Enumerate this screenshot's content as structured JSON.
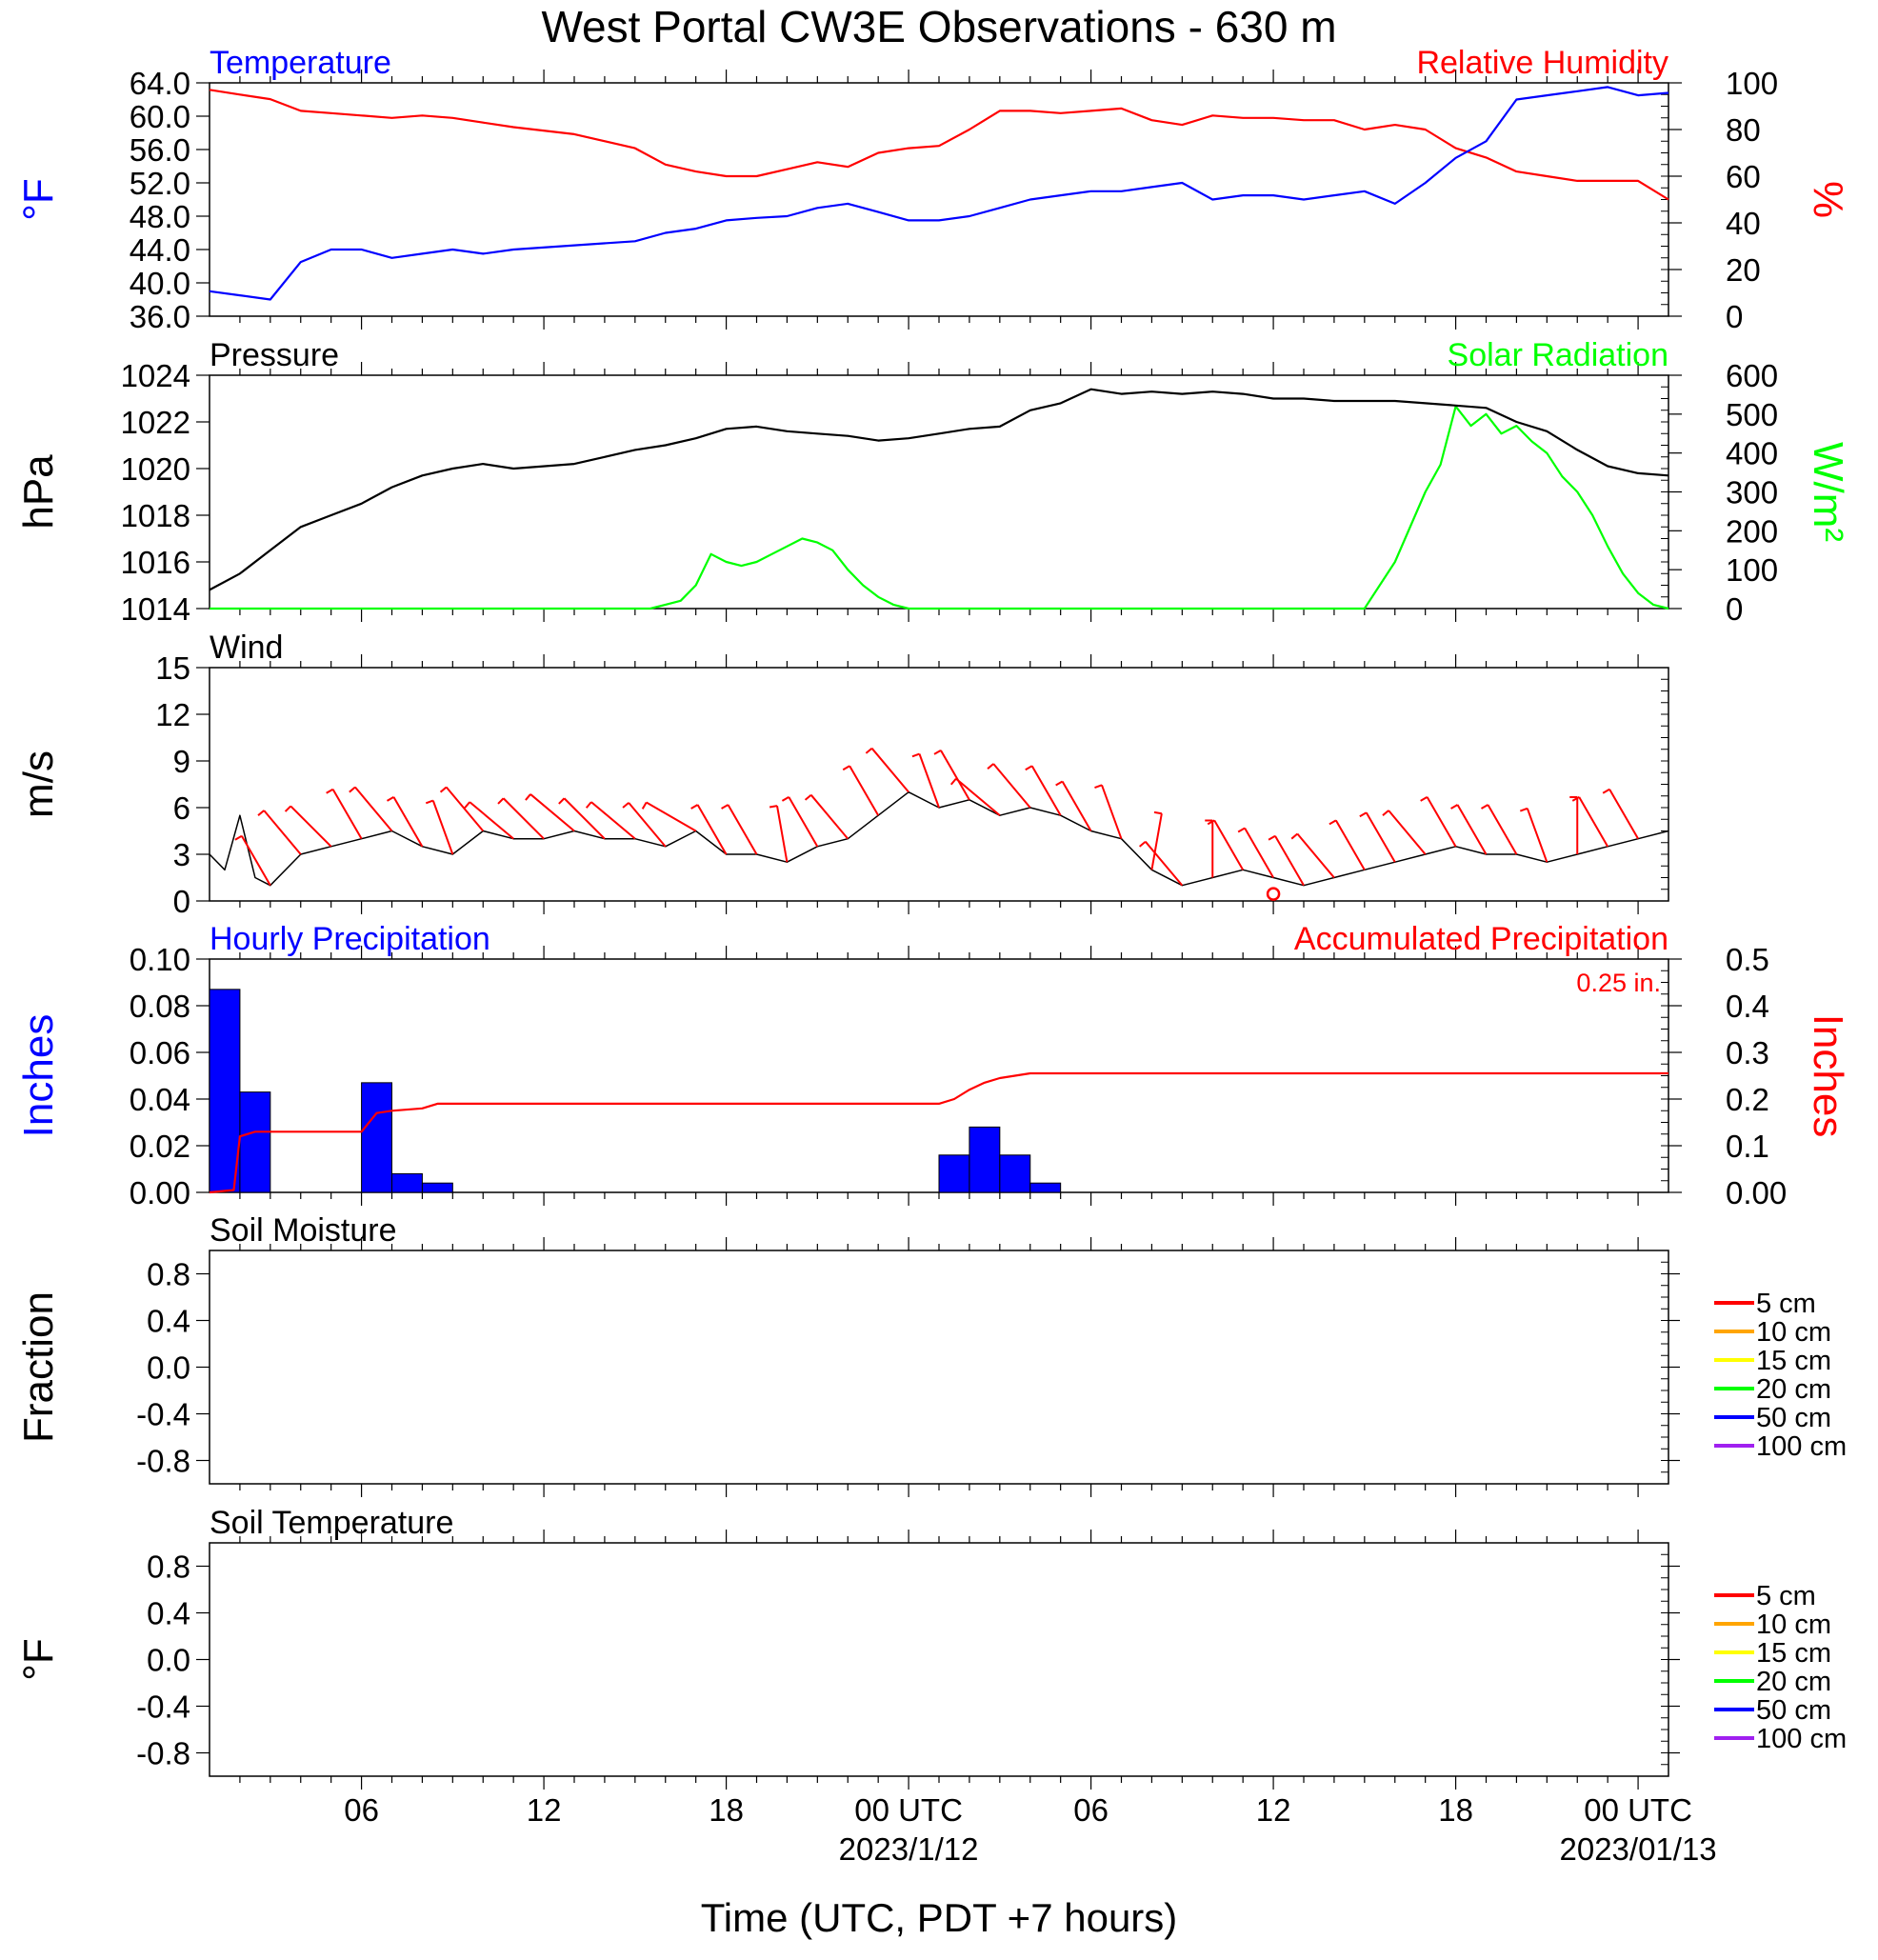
{
  "title": "West Portal CW3E Observations - 630 m",
  "x_axis": {
    "label": "Time (UTC, PDT +7 hours)",
    "range_hours": [
      0,
      48
    ],
    "ticks": [
      {
        "hour": 5,
        "label": "06",
        "sublabel": ""
      },
      {
        "hour": 11,
        "label": "12",
        "sublabel": ""
      },
      {
        "hour": 17,
        "label": "18",
        "sublabel": ""
      },
      {
        "hour": 23,
        "label": "00 UTC",
        "sublabel": "2023/1/12"
      },
      {
        "hour": 29,
        "label": "06",
        "sublabel": ""
      },
      {
        "hour": 35,
        "label": "12",
        "sublabel": ""
      },
      {
        "hour": 41,
        "label": "18",
        "sublabel": ""
      },
      {
        "hour": 47,
        "label": "00 UTC",
        "sublabel": "2023/01/13"
      }
    ]
  },
  "colors": {
    "temperature": "#0000ff",
    "humidity": "#ff0000",
    "pressure": "#000000",
    "solar": "#00ff00",
    "wind": "#000000",
    "barbs": "#ff0000",
    "hourly_precip": "#0000ff",
    "accum_precip": "#ff0000"
  },
  "chart_data": [
    {
      "type": "line",
      "title": "Temperature / Relative Humidity",
      "left_title": "Temperature",
      "right_title": "Relative Humidity",
      "ylabel": "°F",
      "y2label": "%",
      "ylim": [
        36,
        64
      ],
      "y2lim": [
        0,
        100
      ],
      "yticks": [
        "36.0",
        "40.0",
        "44.0",
        "48.0",
        "52.0",
        "56.0",
        "60.0",
        "64.0"
      ],
      "y2ticks": [
        "0",
        "20",
        "40",
        "60",
        "80",
        "100"
      ],
      "series": [
        {
          "name": "Temperature",
          "axis": "left",
          "x": [
            0,
            1,
            2,
            3,
            4,
            5,
            6,
            7,
            8,
            9,
            10,
            12,
            14,
            15,
            16,
            17,
            18,
            19,
            20,
            21,
            22,
            23,
            24,
            25,
            26,
            27,
            28,
            29,
            30,
            31,
            32,
            33,
            34,
            35,
            36,
            37,
            38,
            39,
            40,
            41,
            42,
            43,
            44,
            45,
            46,
            47,
            48
          ],
          "values": [
            39.0,
            38.5,
            38.0,
            42.5,
            44.0,
            44.0,
            43.0,
            43.5,
            44.0,
            43.5,
            44.0,
            44.5,
            45.0,
            46.0,
            46.5,
            47.5,
            47.8,
            48.0,
            49.0,
            49.5,
            48.5,
            47.5,
            47.5,
            48.0,
            49.0,
            50.0,
            50.5,
            51.0,
            51.0,
            51.5,
            52.0,
            50.0,
            50.5,
            50.5,
            50.0,
            50.5,
            51.0,
            49.5,
            52.0,
            55.0,
            57.0,
            62.0,
            62.5,
            63.0,
            63.5,
            62.5,
            62.8
          ]
        },
        {
          "name": "Relative Humidity",
          "axis": "right",
          "x": [
            0,
            1,
            2,
            3,
            4,
            5,
            6,
            7,
            8,
            9,
            10,
            12,
            14,
            15,
            16,
            17,
            18,
            19,
            20,
            21,
            22,
            23,
            24,
            25,
            26,
            27,
            28,
            29,
            30,
            31,
            32,
            33,
            34,
            35,
            36,
            37,
            38,
            39,
            40,
            41,
            42,
            43,
            44,
            45,
            46,
            47,
            48
          ],
          "values": [
            97,
            95,
            93,
            88,
            87,
            86,
            85,
            86,
            85,
            83,
            81,
            78,
            72,
            65,
            62,
            60,
            60,
            63,
            66,
            64,
            70,
            72,
            73,
            80,
            88,
            88,
            87,
            88,
            89,
            84,
            82,
            86,
            85,
            85,
            84,
            84,
            80,
            82,
            80,
            72,
            68,
            62,
            60,
            58,
            58,
            58,
            50
          ]
        }
      ]
    },
    {
      "type": "line",
      "title": "Pressure / Solar Radiation",
      "left_title": "Pressure",
      "right_title": "Solar Radiation",
      "ylabel": "hPa",
      "y2label": "W/m²",
      "ylim": [
        1014,
        1024
      ],
      "y2lim": [
        0,
        600
      ],
      "yticks": [
        "1014",
        "1016",
        "1018",
        "1020",
        "1022",
        "1024"
      ],
      "y2ticks": [
        "0",
        "100",
        "200",
        "300",
        "400",
        "500",
        "600"
      ],
      "series": [
        {
          "name": "Pressure",
          "axis": "left",
          "x": [
            0,
            1,
            2,
            3,
            4,
            5,
            6,
            7,
            8,
            9,
            10,
            12,
            13,
            14,
            15,
            16,
            17,
            18,
            19,
            20,
            21,
            22,
            23,
            24,
            25,
            26,
            27,
            28,
            29,
            30,
            31,
            32,
            33,
            34,
            35,
            36,
            37,
            38,
            39,
            40,
            41,
            42,
            43,
            44,
            45,
            46,
            47,
            48
          ],
          "values": [
            1014.8,
            1015.5,
            1016.5,
            1017.5,
            1018.0,
            1018.5,
            1019.2,
            1019.7,
            1020.0,
            1020.2,
            1020.0,
            1020.2,
            1020.5,
            1020.8,
            1021.0,
            1021.3,
            1021.7,
            1021.8,
            1021.6,
            1021.5,
            1021.4,
            1021.2,
            1021.3,
            1021.5,
            1021.7,
            1021.8,
            1022.5,
            1022.8,
            1023.4,
            1023.2,
            1023.3,
            1023.2,
            1023.3,
            1023.2,
            1023.0,
            1023.0,
            1022.9,
            1022.9,
            1022.9,
            1022.8,
            1022.7,
            1022.6,
            1022.0,
            1021.6,
            1020.8,
            1020.1,
            1019.8,
            1019.7
          ]
        },
        {
          "name": "Solar Radiation",
          "axis": "right",
          "x": [
            0,
            14,
            14.5,
            15,
            15.5,
            16,
            16.5,
            17,
            17.5,
            18,
            18.5,
            19,
            19.5,
            20,
            20.5,
            21,
            21.5,
            22,
            22.5,
            23,
            23.5,
            24,
            38,
            39,
            40,
            40.5,
            41,
            41.5,
            42,
            42.5,
            43,
            43.5,
            44,
            44.5,
            45,
            45.5,
            46,
            46.5,
            47,
            47.5,
            48
          ],
          "values": [
            0,
            0,
            0,
            10,
            20,
            60,
            140,
            120,
            110,
            120,
            140,
            160,
            180,
            170,
            150,
            100,
            60,
            30,
            10,
            0,
            0,
            0,
            0,
            120,
            300,
            370,
            520,
            470,
            500,
            450,
            470,
            430,
            400,
            340,
            300,
            240,
            160,
            90,
            40,
            10,
            0
          ]
        }
      ]
    },
    {
      "type": "line",
      "title": "Wind",
      "left_title": "Wind",
      "ylabel": "m/s",
      "ylim": [
        0,
        15
      ],
      "yticks": [
        "0",
        "3",
        "6",
        "9",
        "12",
        "15"
      ],
      "series": [
        {
          "name": "Wind",
          "x": [
            0,
            0.5,
            1,
            1.5,
            2,
            3,
            4,
            5,
            6,
            7,
            8,
            9,
            10,
            11,
            12,
            13,
            14,
            15,
            16,
            17,
            18,
            19,
            20,
            21,
            22,
            23,
            24,
            25,
            26,
            27,
            28,
            29,
            30,
            31,
            32,
            33,
            34,
            35,
            36,
            37,
            38,
            39,
            40,
            41,
            42,
            43,
            44,
            45,
            46,
            47,
            48
          ],
          "values": [
            3.0,
            2.0,
            5.5,
            1.5,
            1.0,
            3.0,
            3.5,
            4.0,
            4.5,
            3.5,
            3.0,
            4.5,
            4.0,
            4.0,
            4.5,
            4.0,
            4.0,
            3.5,
            4.5,
            3.0,
            3.0,
            2.5,
            3.5,
            4.0,
            5.5,
            7.0,
            6.0,
            6.5,
            5.5,
            6.0,
            5.5,
            4.5,
            4.0,
            2.0,
            1.0,
            1.5,
            2.0,
            1.5,
            1.0,
            1.5,
            2.0,
            2.5,
            3.0,
            3.5,
            3.0,
            3.0,
            2.5,
            3.0,
            3.5,
            4.0,
            4.5
          ]
        },
        {
          "name": "Wind barbs",
          "x": [
            2,
            3,
            4,
            5,
            6,
            7,
            8,
            9,
            10,
            11,
            12,
            13,
            14,
            15,
            16,
            17,
            18,
            19,
            20,
            21,
            22,
            23,
            24,
            25,
            26,
            27,
            28,
            29,
            30,
            31,
            32,
            33,
            34,
            35,
            36,
            37,
            38,
            39,
            40,
            41,
            42,
            43,
            44,
            45,
            46,
            47
          ],
          "direction_deg": [
            330,
            320,
            315,
            330,
            320,
            330,
            340,
            320,
            310,
            315,
            310,
            315,
            310,
            320,
            300,
            330,
            330,
            350,
            330,
            320,
            330,
            320,
            340,
            330,
            310,
            320,
            330,
            330,
            340,
            10,
            320,
            0,
            330,
            330,
            330,
            320,
            330,
            330,
            320,
            330,
            330,
            330,
            340,
            0,
            330,
            330
          ]
        }
      ]
    },
    {
      "type": "bar",
      "title": "Precipitation",
      "left_title": "Hourly Precipitation",
      "right_title": "Accumulated Precipitation",
      "total_label": "0.25 in.",
      "ylabel": "Inches",
      "y2label": "Inches",
      "ylim": [
        0,
        0.1
      ],
      "y2lim": [
        0,
        0.5
      ],
      "yticks": [
        "0.00",
        "0.02",
        "0.04",
        "0.06",
        "0.08",
        "0.10"
      ],
      "y2ticks": [
        "0.00",
        "0.1",
        "0.2",
        "0.3",
        "0.4",
        "0.5"
      ],
      "series": [
        {
          "name": "Hourly Precipitation",
          "axis": "left",
          "x": [
            0,
            1,
            5,
            6,
            7,
            24,
            25,
            26,
            27
          ],
          "values": [
            0.087,
            0.043,
            0.047,
            0.008,
            0.004,
            0.016,
            0.028,
            0.016,
            0.004
          ]
        },
        {
          "name": "Accumulated Precipitation",
          "axis": "right",
          "x": [
            0,
            0.8,
            1.0,
            1.5,
            5.0,
            5.5,
            6.0,
            7.0,
            7.5,
            8,
            24.0,
            24.5,
            25.0,
            25.5,
            26.0,
            26.5,
            27.0,
            28,
            48
          ],
          "values": [
            0,
            0.005,
            0.12,
            0.13,
            0.13,
            0.17,
            0.175,
            0.18,
            0.19,
            0.19,
            0.19,
            0.2,
            0.22,
            0.235,
            0.245,
            0.25,
            0.255,
            0.255,
            0.255
          ]
        }
      ]
    },
    {
      "type": "line",
      "title": "Soil Moisture",
      "left_title": "Soil Moisture",
      "ylabel": "Fraction",
      "ylim": [
        -1,
        1
      ],
      "yticks": [
        "-0.8",
        "-0.4",
        "0.0",
        "0.4",
        "0.8"
      ],
      "ytick_values": [
        -0.8,
        -0.4,
        0.0,
        0.4,
        0.8
      ],
      "legend": [
        {
          "name": "5 cm",
          "color": "#ff0000"
        },
        {
          "name": "10 cm",
          "color": "#ffa500"
        },
        {
          "name": "15 cm",
          "color": "#ffff00"
        },
        {
          "name": "20 cm",
          "color": "#00ff00"
        },
        {
          "name": "50 cm",
          "color": "#0000ff"
        },
        {
          "name": "100 cm",
          "color": "#a020f0"
        }
      ],
      "series": []
    },
    {
      "type": "line",
      "title": "Soil Temperature",
      "left_title": "Soil Temperature",
      "ylabel": "°F",
      "ylim": [
        -1,
        1
      ],
      "yticks": [
        "-0.8",
        "-0.4",
        "0.0",
        "0.4",
        "0.8"
      ],
      "ytick_values": [
        -0.8,
        -0.4,
        0.0,
        0.4,
        0.8
      ],
      "legend": [
        {
          "name": "5 cm",
          "color": "#ff0000"
        },
        {
          "name": "10 cm",
          "color": "#ffa500"
        },
        {
          "name": "15 cm",
          "color": "#ffff00"
        },
        {
          "name": "20 cm",
          "color": "#00ff00"
        },
        {
          "name": "50 cm",
          "color": "#0000ff"
        },
        {
          "name": "100 cm",
          "color": "#a020f0"
        }
      ],
      "series": []
    }
  ]
}
